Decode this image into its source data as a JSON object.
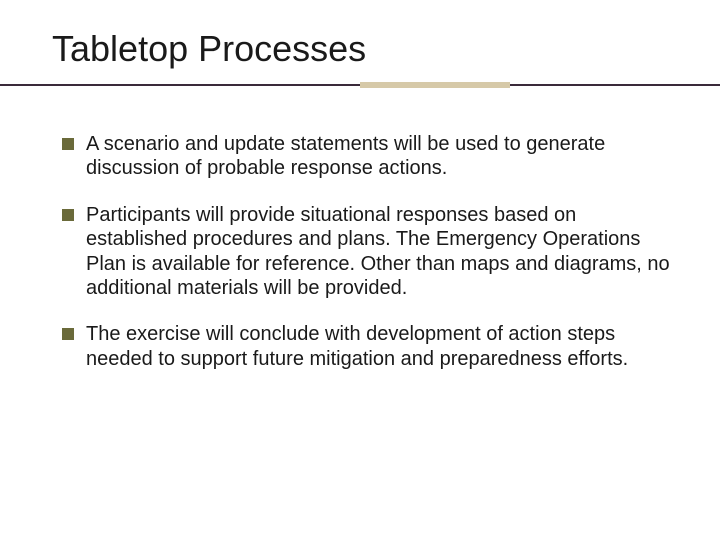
{
  "slide": {
    "title": "Tabletop Processes",
    "title_color": "#1a1a1a",
    "title_fontsize": 36,
    "divider_line_color": "#3a2a3a",
    "divider_accent_color": "#d6c9a8",
    "bullet_color": "#6a6a3a",
    "body_fontsize": 20,
    "body_color": "#1a1a1a",
    "background_color": "#ffffff",
    "bullets": [
      "A scenario and update statements will be used to generate discussion of probable response actions.",
      "Participants will provide situational responses based on established procedures and plans. The Emergency Operations Plan  is available for reference. Other than maps and diagrams, no additional materials will be provided.",
      "The exercise will conclude with development of action steps needed to support future mitigation and preparedness efforts."
    ]
  }
}
